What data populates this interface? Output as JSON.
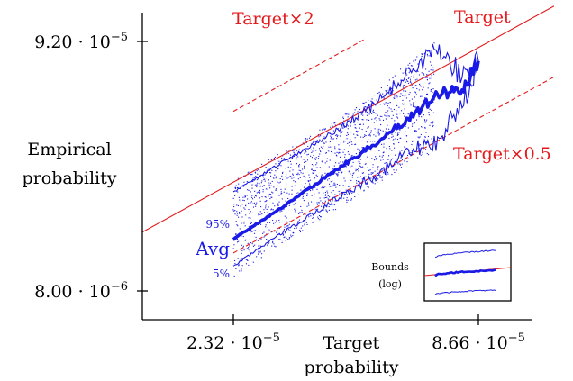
{
  "chart_data": {
    "type": "line",
    "x_scale": "log",
    "y_scale": "log",
    "xlabel": [
      "Target",
      "probability"
    ],
    "ylabel": [
      "Empirical",
      "probability"
    ],
    "x_ticks": [
      {
        "value": 2.32e-05,
        "label": "2.32 · 10",
        "exp": "−5"
      },
      {
        "value": 8.66e-05,
        "label": "8.66 · 10",
        "exp": "−5"
      }
    ],
    "y_ticks": [
      {
        "value": 8e-06,
        "label": "8.00 · 10",
        "exp": "−6"
      },
      {
        "value": 9.2e-05,
        "label": "9.20 · 10",
        "exp": "−5"
      }
    ],
    "reference_lines": [
      {
        "label": "Target",
        "factor": 1,
        "style": "solid",
        "color": "#e41a1c"
      },
      {
        "label": "Target×2",
        "factor": 2,
        "style": "dashed",
        "color": "#e41a1c"
      },
      {
        "label": "Target×0.5",
        "factor": 0.5,
        "style": "dashed",
        "color": "#e41a1c"
      }
    ],
    "series": [
      {
        "name": "Avg",
        "role": "average",
        "color": "#1a1ae6",
        "x": [
          2.32e-05,
          3e-05,
          4e-05,
          5e-05,
          6e-05,
          7e-05,
          8e-05,
          8.66e-05
        ],
        "y": [
          1.33e-05,
          1.8e-05,
          2.6e-05,
          3.4e-05,
          4.4e-05,
          5.5e-05,
          5.8e-05,
          7.6e-05
        ]
      },
      {
        "name": "95%",
        "role": "upper",
        "color": "#1a1ae6",
        "x": [
          2.32e-05,
          3e-05,
          4e-05,
          5e-05,
          6e-05,
          7e-05,
          8e-05,
          8.66e-05
        ],
        "y": [
          2.1e-05,
          2.8e-05,
          3.8e-05,
          5e-05,
          6.9e-05,
          8.5e-05,
          6.5e-05,
          7.6e-05
        ]
      },
      {
        "name": "5%",
        "role": "lower",
        "color": "#1a1ae6",
        "x": [
          2.32e-05,
          3e-05,
          4e-05,
          5e-05,
          6e-05,
          7e-05,
          8e-05,
          8.66e-05
        ],
        "y": [
          1.02e-05,
          1.4e-05,
          1.95e-05,
          2.5e-05,
          3.1e-05,
          3.5e-05,
          5.2e-05,
          7.6e-05
        ]
      }
    ],
    "inset": {
      "label": [
        "Bounds",
        "(log)"
      ]
    },
    "grid": false,
    "scatter_color": "#1a1ae6"
  }
}
